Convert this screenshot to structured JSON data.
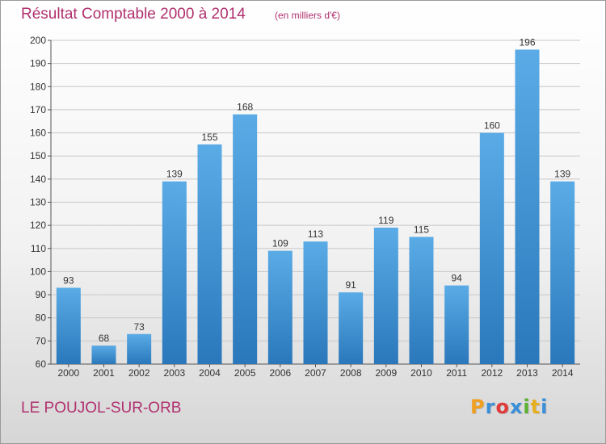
{
  "header": {
    "title": "Résultat Comptable 2000 à 2014",
    "subtitle": "(en milliers d'€)"
  },
  "footer": {
    "place": "LE POUJOL-SUR-ORB",
    "logo_letters": [
      "P",
      "r",
      "o",
      "x",
      "i",
      "t",
      "i"
    ],
    "logo_colors": [
      "#f0a020",
      "#3a8fd8",
      "#e03a3a",
      "#3a8fd8",
      "#5ab030",
      "#e8b020",
      "#3a8fd8"
    ]
  },
  "colors": {
    "bar_top": "#5aabe6",
    "bar_bottom": "#2a78bb",
    "grid": "#c8c8c8",
    "accent_text": "#b0306e"
  },
  "chart_data": {
    "type": "bar",
    "title": "Résultat Comptable 2000 à 2014",
    "subtitle": "(en milliers d'€)",
    "xlabel": "",
    "ylabel": "",
    "categories": [
      "2000",
      "2001",
      "2002",
      "2003",
      "2004",
      "2005",
      "2006",
      "2007",
      "2008",
      "2009",
      "2010",
      "2011",
      "2012",
      "2013",
      "2014"
    ],
    "values": [
      93,
      68,
      73,
      139,
      155,
      168,
      109,
      113,
      91,
      119,
      115,
      94,
      160,
      196,
      139
    ],
    "ylim": [
      60,
      200
    ],
    "yticks": [
      60,
      70,
      80,
      90,
      100,
      110,
      120,
      130,
      140,
      150,
      160,
      170,
      180,
      190,
      200
    ],
    "grid": true,
    "data_labels": true
  }
}
